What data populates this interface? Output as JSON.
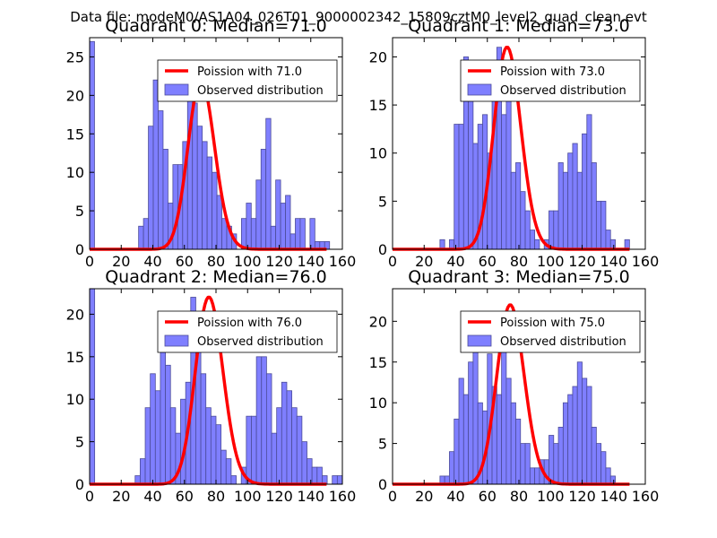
{
  "figure_title": "Data file: modeM0/AS1A04_026T01_9000002342_15809cztM0_level2_quad_clean.evt",
  "colors": {
    "bar_fill": "#7f7fff",
    "bar_edge": "#4c4c99",
    "poisson": "#ff0000"
  },
  "chart_data": [
    {
      "type": "bar",
      "title": "Quadrant 0: Median=71.0",
      "xlim": [
        0,
        160
      ],
      "ylim": [
        0,
        27.5
      ],
      "xticks": [
        0,
        20,
        40,
        60,
        80,
        100,
        120,
        140,
        160
      ],
      "xtick_labels": [
        "0",
        "20",
        "40",
        "60",
        "80",
        "100",
        "120",
        "140",
        "160"
      ],
      "yticks": [
        0,
        5,
        10,
        15,
        20,
        25
      ],
      "ytick_labels": [
        "0",
        "5",
        "10",
        "15",
        "20",
        "25"
      ],
      "bin_width": 3.1,
      "bin_starts": [
        0,
        3.1,
        6.2,
        9.3,
        12.4,
        15.5,
        18.6,
        21.7,
        24.8,
        27.9,
        31,
        34.1,
        37.2,
        40.3,
        43.4,
        46.5,
        49.6,
        52.7,
        55.8,
        58.9,
        62,
        65.1,
        68.2,
        71.3,
        74.4,
        77.5,
        80.6,
        83.7,
        86.8,
        89.9,
        93,
        96.1,
        99.2,
        102.3,
        105.4,
        108.5,
        111.6,
        114.7,
        117.8,
        120.9,
        124,
        127.1,
        130.2,
        133.3,
        136.4,
        139.5,
        142.6,
        145.7,
        148.8,
        151.9
      ],
      "counts": [
        27,
        0,
        0,
        0,
        0,
        0,
        0,
        0,
        0,
        0,
        3,
        4,
        16,
        22,
        18,
        13,
        6,
        11,
        11,
        14,
        21,
        19,
        16,
        14,
        12,
        10,
        7,
        4,
        3,
        2,
        0,
        4,
        6,
        4,
        9,
        13,
        17,
        3,
        9,
        6,
        7,
        2,
        4,
        4,
        0,
        4,
        1,
        1,
        1,
        0
      ],
      "poisson_lambda": 71.0,
      "poisson_scale": 22,
      "legend": [
        "Poission with 71.0",
        "Observed distribution"
      ]
    },
    {
      "type": "bar",
      "title": "Quadrant 1: Median=73.0",
      "xlim": [
        0,
        160
      ],
      "ylim": [
        0,
        22
      ],
      "xticks": [
        0,
        20,
        40,
        60,
        80,
        100,
        120,
        140,
        160
      ],
      "xtick_labels": [
        "0",
        "20",
        "40",
        "60",
        "80",
        "100",
        "120",
        "140",
        "160"
      ],
      "yticks": [
        0,
        5,
        10,
        15,
        20
      ],
      "ytick_labels": [
        "0",
        "5",
        "10",
        "15",
        "20"
      ],
      "bin_width": 3.0,
      "bin_starts": [
        0,
        3,
        6,
        9,
        12,
        15,
        18,
        21,
        24,
        27,
        30,
        33,
        36,
        39,
        42,
        45,
        48,
        51,
        54,
        57,
        60,
        63,
        66,
        69,
        72,
        75,
        78,
        81,
        84,
        87,
        90,
        93,
        96,
        99,
        102,
        105,
        108,
        111,
        114,
        117,
        120,
        123,
        126,
        129,
        132,
        135,
        138,
        141,
        144,
        147
      ],
      "counts": [
        0,
        0,
        0,
        0,
        0,
        0,
        0,
        0,
        0,
        0,
        1,
        0,
        1,
        13,
        13,
        20,
        19,
        11,
        13,
        14,
        10,
        19,
        21,
        14,
        17,
        8,
        9,
        6,
        4,
        2,
        1,
        0,
        1,
        4,
        4,
        9,
        8,
        10,
        11,
        8,
        12,
        14,
        9,
        5,
        5,
        2,
        1,
        0,
        0,
        1
      ],
      "poisson_lambda": 73.0,
      "poisson_scale": 21,
      "legend": [
        "Poission with 73.0",
        "Observed distribution"
      ]
    },
    {
      "type": "bar",
      "title": "Quadrant 2: Median=76.0",
      "xlim": [
        0,
        160
      ],
      "ylim": [
        0,
        23
      ],
      "xticks": [
        0,
        20,
        40,
        60,
        80,
        100,
        120,
        140,
        160
      ],
      "xtick_labels": [
        "0",
        "20",
        "40",
        "60",
        "80",
        "100",
        "120",
        "140",
        "160"
      ],
      "yticks": [
        0,
        5,
        10,
        15,
        20
      ],
      "ytick_labels": [
        "0",
        "5",
        "10",
        "15",
        "20"
      ],
      "bin_width": 3.2,
      "bin_starts": [
        0,
        3.2,
        6.4,
        9.6,
        12.8,
        16,
        19.2,
        22.4,
        25.6,
        28.8,
        32,
        35.2,
        38.4,
        41.6,
        44.8,
        48,
        51.2,
        54.4,
        57.6,
        60.8,
        64,
        67.2,
        70.4,
        73.6,
        76.8,
        80,
        83.2,
        86.4,
        89.6,
        92.8,
        96,
        99.2,
        102.4,
        105.6,
        108.8,
        112,
        115.2,
        118.4,
        121.6,
        124.8,
        128,
        131.2,
        134.4,
        137.6,
        140.8,
        144,
        147.2,
        150.4,
        153.6,
        156.8
      ],
      "counts": [
        23,
        0,
        0,
        0,
        0,
        0,
        0,
        0,
        0,
        1,
        3,
        9,
        13,
        11,
        20,
        14,
        9,
        6,
        10,
        12,
        22,
        16,
        13,
        9,
        8,
        7,
        4,
        3,
        1,
        0,
        2,
        8,
        8,
        15,
        15,
        13,
        6,
        9,
        12,
        11,
        9,
        8,
        5,
        3,
        2,
        2,
        1,
        0,
        1,
        1
      ],
      "poisson_lambda": 76.0,
      "poisson_scale": 22,
      "legend": [
        "Poission with 76.0",
        "Observed distribution"
      ]
    },
    {
      "type": "bar",
      "title": "Quadrant 3: Median=75.0",
      "xlim": [
        0,
        160
      ],
      "ylim": [
        0,
        24
      ],
      "xticks": [
        0,
        20,
        40,
        60,
        80,
        100,
        120,
        140,
        160
      ],
      "xtick_labels": [
        "0",
        "20",
        "40",
        "60",
        "80",
        "100",
        "120",
        "140",
        "160"
      ],
      "yticks": [
        0,
        5,
        10,
        15,
        20
      ],
      "ytick_labels": [
        "0",
        "5",
        "10",
        "15",
        "20"
      ],
      "bin_width": 3.0,
      "bin_starts": [
        0,
        3,
        6,
        9,
        12,
        15,
        18,
        21,
        24,
        27,
        30,
        33,
        36,
        39,
        42,
        45,
        48,
        51,
        54,
        57,
        60,
        63,
        66,
        69,
        72,
        75,
        78,
        81,
        84,
        87,
        90,
        93,
        96,
        99,
        102,
        105,
        108,
        111,
        114,
        117,
        120,
        123,
        126,
        129,
        132,
        135,
        138,
        141,
        144,
        147
      ],
      "counts": [
        0,
        0,
        0,
        0,
        0,
        0,
        0,
        0,
        0,
        0,
        1,
        1,
        4,
        8,
        13,
        11,
        15,
        17,
        10,
        9,
        16,
        12,
        11,
        17,
        13,
        10,
        8,
        5,
        5,
        2,
        2,
        3,
        3,
        6,
        5,
        7,
        10,
        11,
        12,
        15,
        13,
        12,
        7,
        5,
        4,
        2,
        1,
        0,
        0,
        0
      ],
      "poisson_lambda": 75.0,
      "poisson_scale": 22,
      "legend": [
        "Poission with 75.0",
        "Observed distribution"
      ]
    }
  ]
}
